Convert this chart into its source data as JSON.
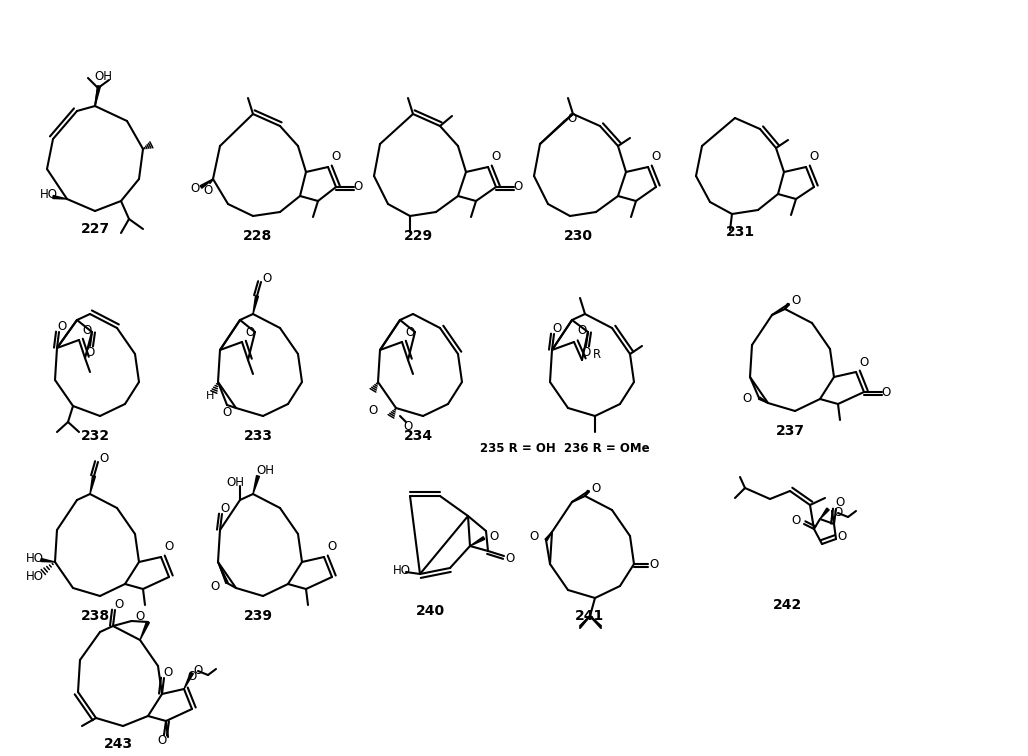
{
  "figsize": [
    10.28,
    7.56
  ],
  "dpi": 100,
  "bg": "#ffffff",
  "compounds": [
    "227",
    "228",
    "229",
    "230",
    "231",
    "232",
    "233",
    "234",
    "235/236",
    "237",
    "238",
    "239",
    "240",
    "241",
    "242",
    "243"
  ]
}
